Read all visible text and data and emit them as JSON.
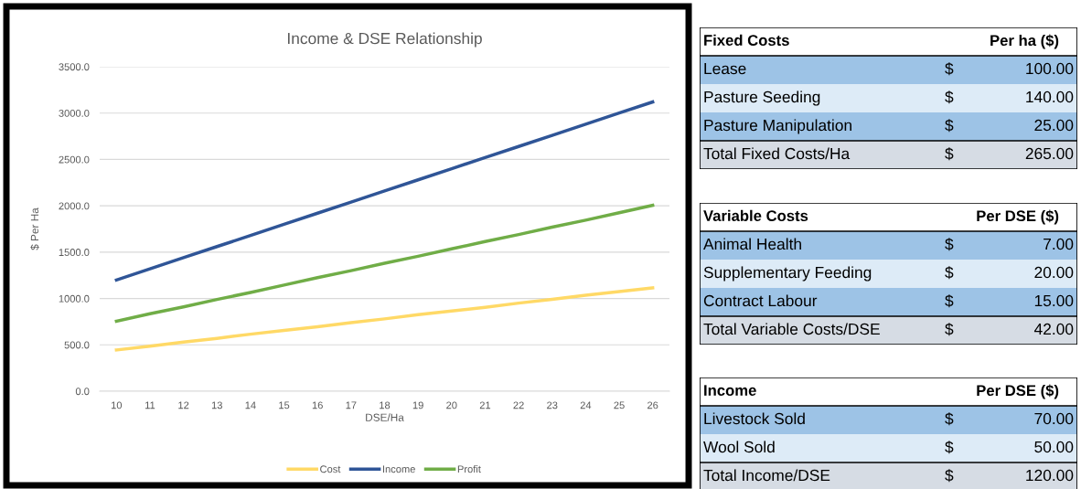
{
  "chart_data": [
    {
      "type": "line",
      "title": "Income & DSE Relationship",
      "xlabel": "DSE/Ha",
      "ylabel": "$ Per Ha",
      "categories": [
        "10",
        "11",
        "12",
        "13",
        "14",
        "15",
        "16",
        "17",
        "18",
        "19",
        "20",
        "21",
        "22",
        "23",
        "24",
        "25",
        "26"
      ],
      "series": [
        {
          "name": "Cost",
          "color": "#ffd966",
          "values": [
            445,
            485,
            530,
            570,
            615,
            655,
            695,
            740,
            780,
            825,
            865,
            905,
            950,
            990,
            1035,
            1075,
            1115
          ]
        },
        {
          "name": "Income",
          "color": "#2f5597",
          "values": [
            1200,
            1320,
            1440,
            1560,
            1680,
            1800,
            1920,
            2040,
            2160,
            2280,
            2400,
            2520,
            2640,
            2760,
            2880,
            3000,
            3120
          ]
        },
        {
          "name": "Profit",
          "color": "#70ad47",
          "values": [
            755,
            835,
            910,
            990,
            1065,
            1145,
            1225,
            1300,
            1380,
            1455,
            1535,
            1615,
            1690,
            1770,
            1845,
            1925,
            2005
          ]
        }
      ],
      "ylim": [
        0,
        3500
      ],
      "yticks": [
        {
          "value": 0,
          "label": "0.0"
        },
        {
          "value": 500,
          "label": "500.0"
        },
        {
          "value": 1000,
          "label": "1000.0"
        },
        {
          "value": 1500,
          "label": "1500.0"
        },
        {
          "value": 2000,
          "label": "2000.0"
        },
        {
          "value": 2500,
          "label": "2500.0"
        },
        {
          "value": 3000,
          "label": "3000.0"
        },
        {
          "value": 3500,
          "label": "3500.0"
        }
      ],
      "grid": "y",
      "legend": "bottom",
      "marker": "none",
      "line_style": "solid"
    },
    {
      "type": "other",
      "title": "Fixed Costs",
      "subtitle": "Per ha ($)",
      "categories": [
        "Lease",
        "Pasture Seeding",
        "Pasture Manipulation",
        "Total Fixed Costs/Ha"
      ],
      "value_labels": [
        "100.00",
        "140.00",
        "25.00",
        "265.00"
      ],
      "annotations": [
        "$",
        "$",
        "$",
        "$"
      ],
      "colors": [
        "#9dc3e6",
        "#ddebf7",
        "#9dc3e6",
        "#d6dce4"
      ]
    },
    {
      "type": "other",
      "title": "Variable Costs",
      "subtitle": "Per DSE ($)",
      "categories": [
        "Animal Health",
        "Supplementary Feeding",
        "Contract Labour",
        "Total Variable Costs/DSE"
      ],
      "value_labels": [
        "7.00",
        "20.00",
        "15.00",
        "42.00"
      ],
      "annotations": [
        "$",
        "$",
        "$",
        "$"
      ],
      "colors": [
        "#9dc3e6",
        "#ddebf7",
        "#9dc3e6",
        "#d6dce4"
      ]
    },
    {
      "type": "other",
      "title": "Income",
      "subtitle": "Per DSE ($)",
      "categories": [
        "Livestock Sold",
        "Wool Sold",
        "Total Income/DSE"
      ],
      "value_labels": [
        "70.00",
        "50.00",
        "120.00"
      ],
      "annotations": [
        "$",
        "$",
        "$"
      ],
      "colors": [
        "#9dc3e6",
        "#ddebf7",
        "#d6dce4"
      ]
    }
  ]
}
